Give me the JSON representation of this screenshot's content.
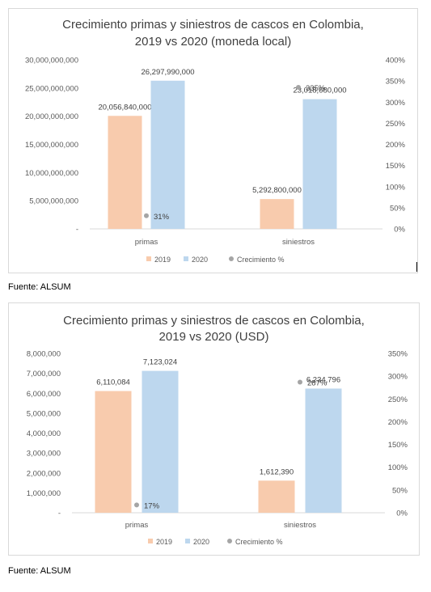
{
  "colors": {
    "c2019": "#f8cbad",
    "c2020": "#bdd7ee",
    "growth": "#a5a5a5",
    "text": "#595959",
    "title": "#404040",
    "grid": "#d9d9d9"
  },
  "sources": [
    "Fuente: ALSUM",
    "Fuente: ALSUM"
  ],
  "chart_data": [
    {
      "type": "bar",
      "title": "Crecimiento primas y siniestros de cascos en Colombia,",
      "subtitle": "2019 vs 2020 (moneda local)",
      "categories": [
        "primas",
        "siniestros"
      ],
      "series": [
        {
          "name": "2019",
          "values": [
            20056840000,
            5292800000
          ],
          "labels": [
            "20,056,840,000",
            "5,292,800,000"
          ]
        },
        {
          "name": "2020",
          "values": [
            26297990000,
            23018680000
          ],
          "labels": [
            "26,297,990,000",
            "23,018,680,000"
          ]
        }
      ],
      "growth": {
        "name": "Crecimiento %",
        "values": [
          31,
          335
        ],
        "labels": [
          "31%",
          "335%"
        ]
      },
      "ylim": [
        0,
        30000000000
      ],
      "y_ticks": [
        "-",
        "5,000,000,000",
        "10,000,000,000",
        "15,000,000,000",
        "20,000,000,000",
        "25,000,000,000",
        "30,000,000,000"
      ],
      "y2lim": [
        0,
        400
      ],
      "y2_ticks": [
        "0%",
        "50%",
        "100%",
        "150%",
        "200%",
        "250%",
        "300%",
        "350%",
        "400%"
      ],
      "legend": [
        "2019",
        "2020",
        "Crecimiento %"
      ],
      "legend_position": "bottom"
    },
    {
      "type": "bar",
      "title": "Crecimiento primas y siniestros de cascos en Colombia,",
      "subtitle": "2019 vs 2020 (USD)",
      "categories": [
        "primas",
        "siniestros"
      ],
      "series": [
        {
          "name": "2019",
          "values": [
            6110084,
            1612390
          ],
          "labels": [
            "6,110,084",
            "1,612,390"
          ]
        },
        {
          "name": "2020",
          "values": [
            7123024,
            6234796
          ],
          "labels": [
            "7,123,024",
            "6,234,796"
          ]
        }
      ],
      "growth": {
        "name": "Crecimiento %",
        "values": [
          17,
          287
        ],
        "labels": [
          "17%",
          "287%"
        ]
      },
      "ylim": [
        0,
        8000000
      ],
      "y_ticks": [
        "-",
        "1,000,000",
        "2,000,000",
        "3,000,000",
        "4,000,000",
        "5,000,000",
        "6,000,000",
        "7,000,000",
        "8,000,000"
      ],
      "y2lim": [
        0,
        350
      ],
      "y2_ticks": [
        "0%",
        "50%",
        "100%",
        "150%",
        "200%",
        "250%",
        "300%",
        "350%"
      ],
      "legend": [
        "2019",
        "2020",
        "Crecimiento %"
      ],
      "legend_position": "bottom"
    }
  ]
}
